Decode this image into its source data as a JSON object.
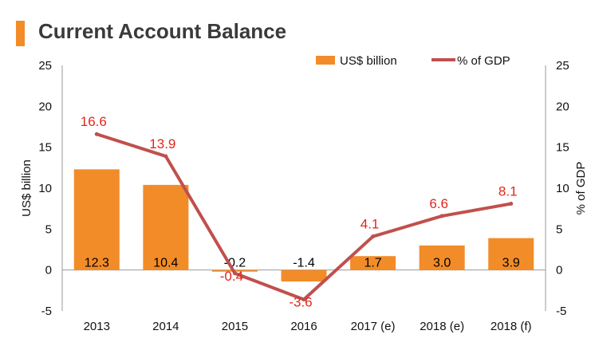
{
  "title": "Current Account Balance",
  "chart_data": {
    "type": "bar+line",
    "title": "Current Account Balance",
    "categories": [
      "2013",
      "2014",
      "2015",
      "2016",
      "2017 (e)",
      "2018 (e)",
      "2018 (f)"
    ],
    "series": [
      {
        "name": "US$ billion",
        "type": "bar",
        "axis": "left",
        "color": "#f28c28",
        "values": [
          12.3,
          10.4,
          -0.2,
          -1.4,
          1.7,
          3.0,
          3.9
        ],
        "labels": [
          "12.3",
          "10.4",
          "-0.2",
          "-1.4",
          "1.7",
          "3.0",
          "3.9"
        ]
      },
      {
        "name": "% of GDP",
        "type": "line",
        "axis": "right",
        "color": "#c0504d",
        "values": [
          16.6,
          13.9,
          -0.4,
          -3.6,
          4.1,
          6.6,
          8.1
        ],
        "labels": [
          "16.6",
          "13.9",
          "-0.4",
          "-3.6",
          "4.1",
          "6.6",
          "8.1"
        ]
      }
    ],
    "ylabel": "US$ billion",
    "y2label": "% of GDP",
    "ylim": [
      -5,
      25
    ],
    "y2lim": [
      -5,
      25
    ],
    "yticks": [
      "-5",
      "0",
      "5",
      "10",
      "15",
      "20",
      "25"
    ],
    "y2ticks": [
      "-5",
      "0",
      "5",
      "10",
      "15",
      "20",
      "25"
    ],
    "legend_position": "top-right",
    "grid": false
  }
}
